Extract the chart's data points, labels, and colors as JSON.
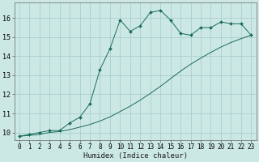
{
  "title": "",
  "xlabel": "Humidex (Indice chaleur)",
  "bg_color": "#cce8e4",
  "grid_color": "#aacfcb",
  "line_color": "#1a6b5a",
  "xlim": [
    -0.5,
    23.5
  ],
  "ylim": [
    9.6,
    16.8
  ],
  "yticks": [
    10,
    11,
    12,
    13,
    14,
    15,
    16
  ],
  "xticks": [
    0,
    1,
    2,
    3,
    4,
    5,
    6,
    7,
    8,
    9,
    10,
    11,
    12,
    13,
    14,
    15,
    16,
    17,
    18,
    19,
    20,
    21,
    22,
    23
  ],
  "series1_x": [
    0,
    1,
    2,
    3,
    4,
    5,
    6,
    7,
    8,
    9,
    10,
    11,
    12,
    13,
    14,
    15,
    16,
    17,
    18,
    19,
    20,
    21,
    22,
    23
  ],
  "series1_y": [
    9.8,
    9.9,
    10.0,
    10.1,
    10.1,
    10.5,
    10.8,
    11.5,
    13.3,
    14.4,
    15.9,
    15.3,
    15.6,
    16.3,
    16.4,
    15.9,
    15.2,
    15.1,
    15.5,
    15.5,
    15.8,
    15.7,
    15.7,
    15.1
  ],
  "series2_x": [
    0,
    1,
    2,
    3,
    4,
    5,
    6,
    7,
    8,
    9,
    10,
    11,
    12,
    13,
    14,
    15,
    16,
    17,
    18,
    19,
    20,
    21,
    22,
    23
  ],
  "series2_y": [
    9.8,
    9.85,
    9.9,
    10.0,
    10.05,
    10.15,
    10.28,
    10.42,
    10.6,
    10.82,
    11.1,
    11.38,
    11.7,
    12.05,
    12.42,
    12.82,
    13.22,
    13.58,
    13.9,
    14.2,
    14.48,
    14.72,
    14.92,
    15.1
  ]
}
